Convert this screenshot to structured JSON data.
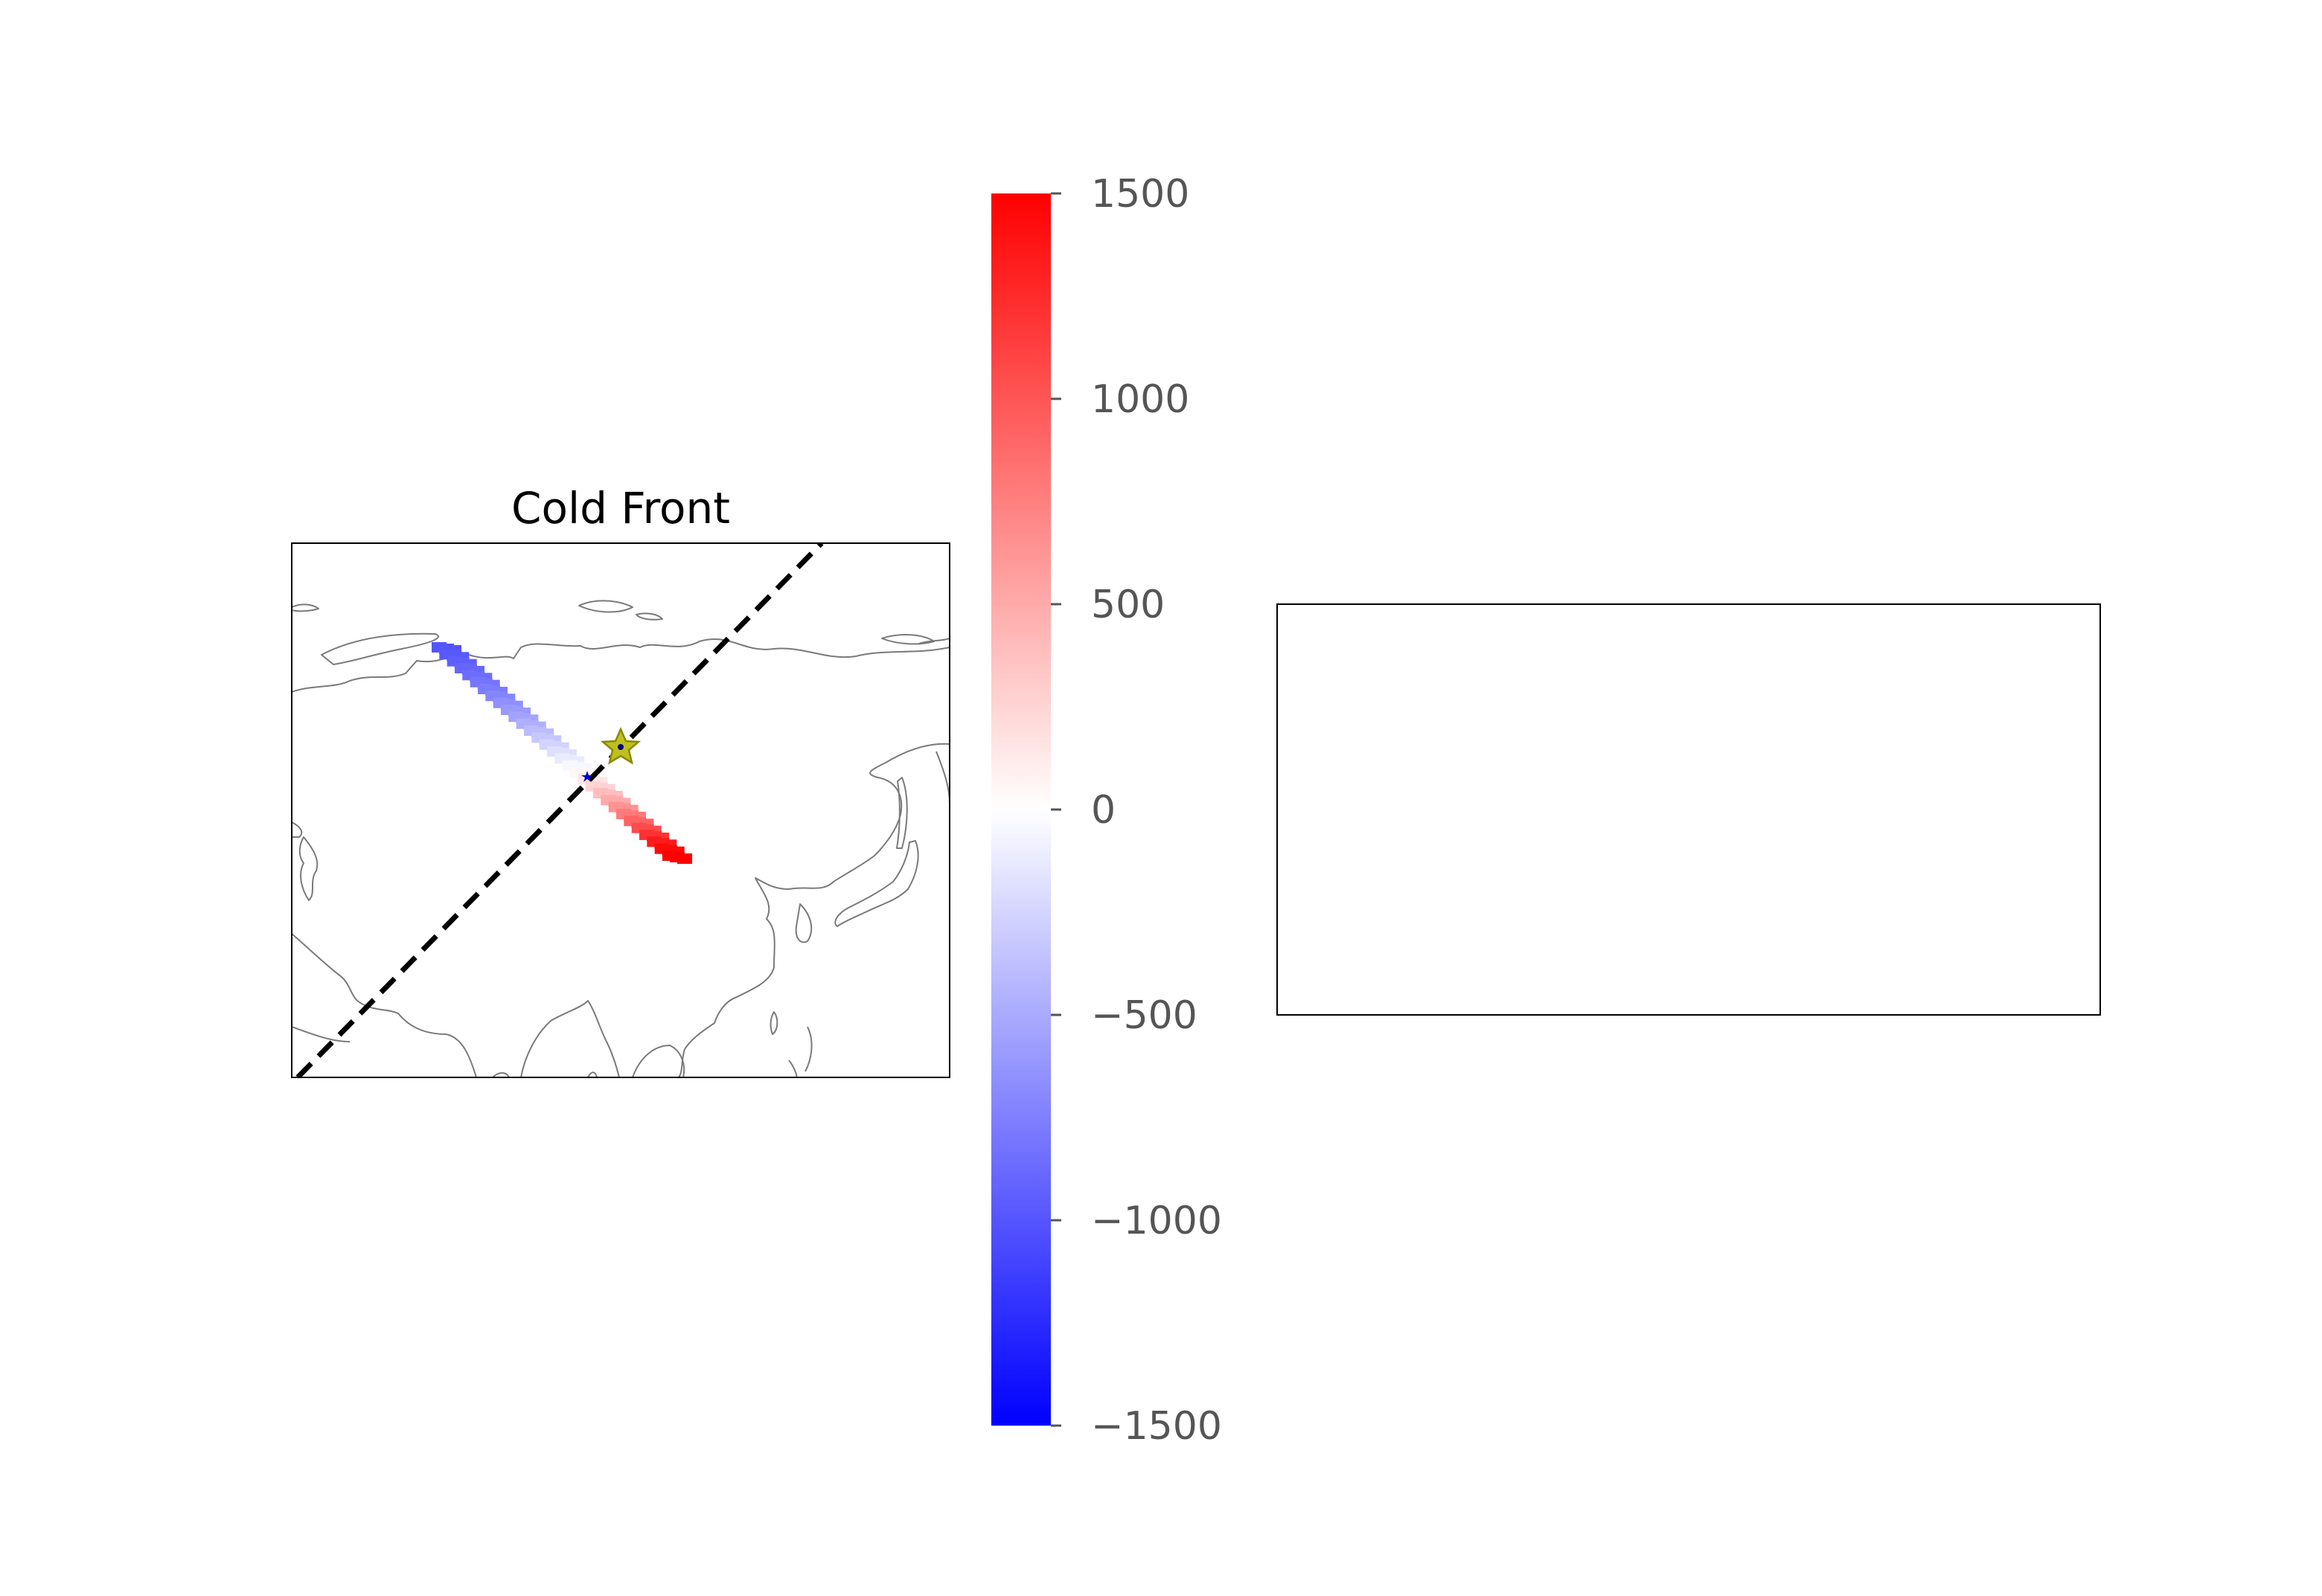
{
  "map_panel": {
    "title": "Cold Front",
    "region": "Eurasia (Siberia, Central Asia, East Asia)",
    "front_line": {
      "style": "dashed",
      "color": "#000000"
    },
    "markers": [
      {
        "name": "front-center-star",
        "shape": "star",
        "fill": "#bfbf1f",
        "edge": "#8a8a00"
      },
      {
        "name": "blue-point-marker",
        "shape": "star",
        "fill": "#0000cc"
      }
    ]
  },
  "chart_data": {
    "type": "heatmap",
    "title": "Cold Front",
    "colormap": "bwr",
    "value_range": [
      -1500,
      1500
    ],
    "transect_cell_values": [
      -1000,
      -980,
      -940,
      -900,
      -860,
      -820,
      -770,
      -720,
      -660,
      -600,
      -540,
      -470,
      -400,
      -330,
      -260,
      -190,
      -120,
      -50,
      50,
      150,
      260,
      380,
      500,
      640,
      780,
      920,
      1060,
      1200,
      1340,
      1450,
      1500
    ]
  },
  "colorbar": {
    "vmin": -1500,
    "vmax": 1500,
    "colors": {
      "min": "#0000ff",
      "mid": "#ffffff",
      "max": "#ff0000"
    },
    "ticks": [
      {
        "value": 1500,
        "label": "1500"
      },
      {
        "value": 1000,
        "label": "1000"
      },
      {
        "value": 500,
        "label": "500"
      },
      {
        "value": 0,
        "label": "0"
      },
      {
        "value": -500,
        "label": "−500"
      },
      {
        "value": -1000,
        "label": "−1000"
      },
      {
        "value": -1500,
        "label": "−1500"
      }
    ]
  },
  "right_panel": {
    "content": "empty"
  }
}
